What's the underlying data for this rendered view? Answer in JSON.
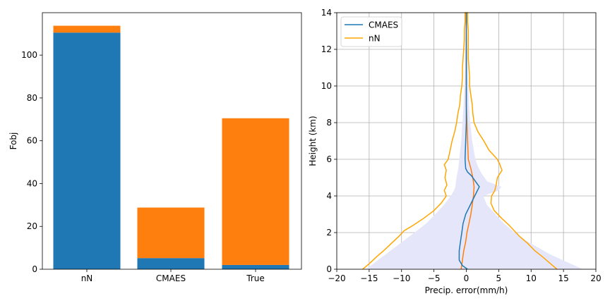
{
  "colors": {
    "bottom_bar": "#1f77b4",
    "top_bar": "#ff7f0e",
    "cmaes_line": "#1f77b4",
    "nn_line": "orange",
    "n_line": "#ff7f0e",
    "shade": "#e6e6fb",
    "grid": "#b0b0b0"
  },
  "chart_data": [
    {
      "type": "bar",
      "stacked": true,
      "categories": [
        "nN",
        "CMAES",
        "True"
      ],
      "series": [
        {
          "values": [
            110.5,
            5.2,
            2.0
          ]
        },
        {
          "values": [
            3.2,
            23.6,
            68.5
          ]
        }
      ],
      "ylabel": "Fobj",
      "xlabel": "",
      "ylim": [
        0,
        119.8
      ],
      "yticks": [
        0,
        20,
        40,
        60,
        80,
        100
      ],
      "grid": false
    },
    {
      "type": "line",
      "xlabel": "Precip. error(mm/h)",
      "ylabel": "Height (km)",
      "xlim": [
        -20,
        20
      ],
      "ylim": [
        0,
        14
      ],
      "xticks": [
        -20,
        -15,
        -10,
        -5,
        0,
        5,
        10,
        15,
        20
      ],
      "yticks": [
        0,
        2,
        4,
        6,
        8,
        10,
        12,
        14
      ],
      "grid": true,
      "legend_position": "top-left",
      "shaded_band": {
        "y": [
          0,
          0.4,
          0.8,
          1.2,
          1.6,
          2.0,
          2.5,
          3.0,
          3.5,
          4.0,
          4.3,
          4.5,
          4.8,
          5.2,
          5.6,
          6.0,
          7.0,
          8.0,
          9.0,
          10.0,
          11.0,
          12.0,
          13.0,
          14.0
        ],
        "left": [
          -15.5,
          -14.0,
          -12.5,
          -11.0,
          -9.5,
          -8.0,
          -6.2,
          -4.8,
          -3.5,
          -2.4,
          -1.9,
          -1.7,
          -1.6,
          -1.4,
          -1.2,
          -1.1,
          -0.8,
          -0.6,
          -0.4,
          -0.3,
          -0.2,
          -0.15,
          -0.1,
          -0.1
        ],
        "right": [
          18.0,
          15.5,
          13.0,
          11.0,
          9.0,
          7.5,
          5.8,
          4.5,
          3.2,
          2.6,
          5.0,
          5.4,
          3.2,
          2.4,
          1.8,
          1.4,
          0.9,
          0.6,
          0.4,
          0.3,
          0.2,
          0.15,
          0.1,
          0.1
        ]
      },
      "series": [
        {
          "name": "CMAES",
          "x": [
            0.2,
            -0.6,
            -1.1,
            -1.1,
            -0.9,
            -0.7,
            -0.5,
            -0.1,
            0.6,
            1.3,
            2.0,
            1.4,
            0.8,
            0.2,
            -0.1,
            -0.2,
            -0.1,
            0.0,
            0.0,
            0.0,
            0.0,
            0.0,
            0.0,
            0.0
          ],
          "y": [
            0.0,
            0.2,
            0.5,
            1.0,
            1.5,
            2.0,
            2.5,
            3.0,
            3.5,
            4.0,
            4.5,
            4.8,
            5.1,
            5.3,
            5.5,
            6.0,
            7.0,
            8.0,
            9.0,
            10.0,
            11.0,
            12.0,
            13.0,
            14.0
          ]
        },
        {
          "x": [
            -0.8,
            -0.6,
            -0.4,
            -0.1,
            0.1,
            0.4,
            0.7,
            0.9,
            1.1,
            1.2,
            1.0,
            0.7,
            0.3,
            0.2,
            0.1,
            0.0,
            0.0,
            0.0,
            0.0,
            0.0,
            0.0,
            0.0
          ],
          "y": [
            0.0,
            0.5,
            1.0,
            1.5,
            2.0,
            2.5,
            3.0,
            3.5,
            4.0,
            4.5,
            5.0,
            5.5,
            6.0,
            7.0,
            8.0,
            9.0,
            10.0,
            11.0,
            12.0,
            13.0,
            13.6,
            14.0
          ]
        },
        {
          "name": "nN",
          "outline": {
            "y": [
              0.0,
              0.3,
              0.7,
              1.0,
              1.4,
              1.8,
              2.1,
              2.4,
              2.8,
              3.2,
              3.6,
              4.0,
              4.3,
              4.6,
              5.0,
              5.4,
              5.7,
              6.0,
              6.5,
              7.0,
              7.5,
              8.0,
              8.5,
              9.0,
              9.5,
              10.0,
              10.5,
              11.0,
              11.5,
              12.0,
              12.5,
              13.0,
              13.5,
              14.0
            ],
            "left": [
              -16.0,
              -15.0,
              -13.8,
              -12.8,
              -11.6,
              -10.4,
              -9.6,
              -8.2,
              -6.5,
              -5.0,
              -3.9,
              -3.1,
              -3.4,
              -3.0,
              -3.3,
              -3.1,
              -3.4,
              -2.8,
              -2.5,
              -2.2,
              -1.8,
              -1.5,
              -1.3,
              -1.0,
              -0.9,
              -0.7,
              -0.6,
              -0.6,
              -0.5,
              -0.4,
              -0.3,
              -0.3,
              -0.2,
              -0.2
            ],
            "right": [
              14.0,
              13.0,
              11.7,
              10.6,
              9.5,
              8.2,
              7.4,
              6.6,
              5.4,
              4.3,
              3.8,
              3.9,
              4.4,
              4.6,
              4.8,
              5.5,
              5.2,
              4.8,
              3.5,
              2.7,
              1.8,
              1.2,
              1.0,
              0.9,
              0.7,
              0.5,
              0.5,
              0.4,
              0.3,
              0.3,
              0.3,
              0.3,
              0.2,
              0.2
            ]
          }
        }
      ]
    }
  ]
}
